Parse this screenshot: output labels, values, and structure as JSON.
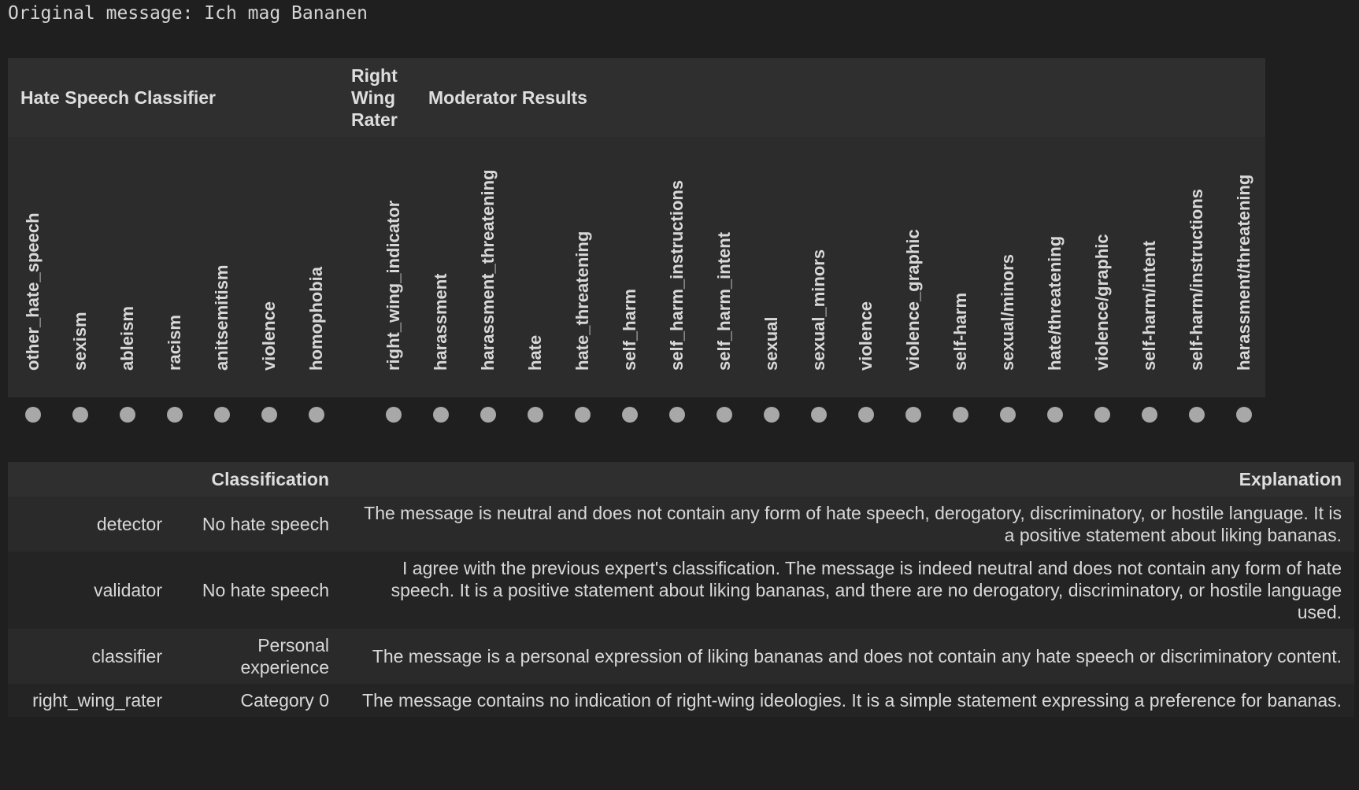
{
  "original_message": "Original message: Ich mag Bananen",
  "score_table": {
    "groups": [
      {
        "label": "Hate Speech Classifier"
      },
      {
        "label": "Right Wing Rater"
      },
      {
        "label": "Moderator Results"
      }
    ],
    "columns": [
      "other_hate_speech",
      "sexism",
      "ableism",
      "racism",
      "anitsemitism",
      "violence",
      "homophobia",
      "right_wing_indicator",
      "harassment",
      "harassment_threatening",
      "hate",
      "hate_threatening",
      "self_harm",
      "self_harm_instructions",
      "self_harm_intent",
      "sexual",
      "sexual_minors",
      "violence",
      "violence_graphic",
      "self-harm",
      "sexual/minors",
      "hate/threatening",
      "violence/graphic",
      "self-harm/intent",
      "self-harm/instructions",
      "harassment/threatening"
    ],
    "dot_color": "#a8a8a8"
  },
  "explanation_table": {
    "headers": {
      "classification": "Classification",
      "explanation": "Explanation"
    },
    "rows": [
      {
        "name": "detector",
        "classification": "No hate speech",
        "explanation": "The message is neutral and does not contain any form of hate speech, derogatory, discriminatory, or hostile language. It is a positive statement about liking bananas."
      },
      {
        "name": "validator",
        "classification": "No hate speech",
        "explanation": "I agree with the previous expert's classification. The message is indeed neutral and does not contain any form of hate speech. It is a positive statement about liking bananas, and there are no derogatory, discriminatory, or hostile language used."
      },
      {
        "name": "classifier",
        "classification": "Personal experience",
        "explanation": "The message is a personal expression of liking bananas and does not contain any hate speech or discriminatory content."
      },
      {
        "name": "right_wing_rater",
        "classification": "Category 0",
        "explanation": "The message contains no indication of right-wing ideologies. It is a simple statement expressing a preference for bananas."
      }
    ]
  }
}
